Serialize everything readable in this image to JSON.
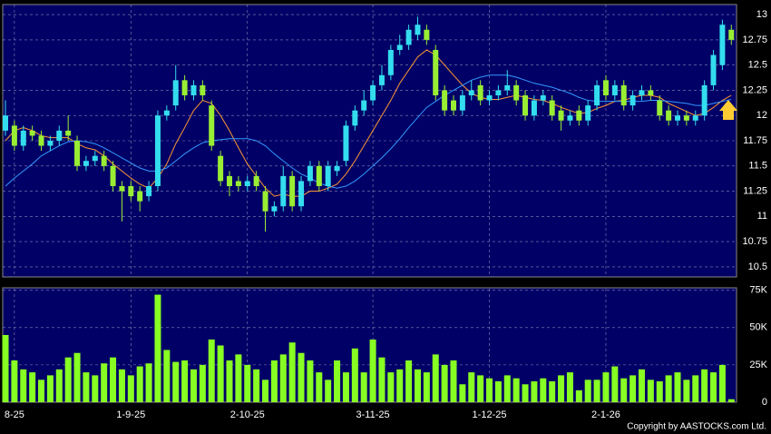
{
  "chart_data": [
    {
      "type": "candlestick",
      "categories": [
        null,
        "8-25",
        null,
        null,
        null,
        null,
        null,
        null,
        null,
        null,
        null,
        null,
        null,
        null,
        "1-9-25",
        null,
        null,
        null,
        null,
        null,
        null,
        null,
        null,
        null,
        null,
        null,
        null,
        "2-10-25",
        null,
        null,
        null,
        null,
        null,
        null,
        null,
        null,
        null,
        null,
        null,
        null,
        null,
        "3-11-25",
        null,
        null,
        null,
        null,
        null,
        null,
        null,
        null,
        null,
        null,
        null,
        null,
        "1-12-25",
        null,
        null,
        null,
        null,
        null,
        null,
        null,
        null,
        null,
        null,
        null,
        null,
        "2-1-26",
        null,
        null,
        null,
        null,
        null,
        null,
        null,
        null,
        null,
        null,
        null,
        null,
        null,
        null
      ],
      "open": [
        11.85,
        11.9,
        11.7,
        11.85,
        11.8,
        11.7,
        11.75,
        11.85,
        11.75,
        11.5,
        11.55,
        11.6,
        11.5,
        11.3,
        11.3,
        11.25,
        11.2,
        11.3,
        12.0,
        12.1,
        12.35,
        12.2,
        12.3,
        12.1,
        11.6,
        11.4,
        11.35,
        11.3,
        11.4,
        11.25,
        11.05,
        11.1,
        11.4,
        11.1,
        11.35,
        11.5,
        11.3,
        11.45,
        11.55,
        11.9,
        12.05,
        12.15,
        12.3,
        12.4,
        12.65,
        12.7,
        12.8,
        12.85,
        12.65,
        12.25,
        12.15,
        12.05,
        12.2,
        12.3,
        12.15,
        12.2,
        12.25,
        12.3,
        12.2,
        12.0,
        12.15,
        12.15,
        12.05,
        11.95,
        12.05,
        11.95,
        12.1,
        12.35,
        12.2,
        12.3,
        12.1,
        12.2,
        12.25,
        12.15,
        12.05,
        11.95,
        12.0,
        11.95,
        12.0,
        12.3,
        12.5,
        12.85
      ],
      "high": [
        12.15,
        11.95,
        11.9,
        11.9,
        11.85,
        11.8,
        11.9,
        12.0,
        11.8,
        11.6,
        11.65,
        11.65,
        11.55,
        11.35,
        11.35,
        11.3,
        11.35,
        12.05,
        12.1,
        12.5,
        12.4,
        12.35,
        12.35,
        12.15,
        11.65,
        11.45,
        11.4,
        11.4,
        11.45,
        11.3,
        11.15,
        11.5,
        11.45,
        11.4,
        11.55,
        11.55,
        11.55,
        11.55,
        11.95,
        12.1,
        12.25,
        12.35,
        12.5,
        12.7,
        12.8,
        12.9,
        12.98,
        12.9,
        12.7,
        12.3,
        12.2,
        12.25,
        12.35,
        12.35,
        12.25,
        12.3,
        12.45,
        12.35,
        12.25,
        12.2,
        12.25,
        12.2,
        12.1,
        12.05,
        12.1,
        12.15,
        12.35,
        12.4,
        12.35,
        12.35,
        12.25,
        12.3,
        12.3,
        12.2,
        12.1,
        12.05,
        12.05,
        12.05,
        12.35,
        12.65,
        12.95,
        12.9
      ],
      "low": [
        11.8,
        11.65,
        11.65,
        11.75,
        11.65,
        11.65,
        11.7,
        11.75,
        11.45,
        11.45,
        11.5,
        11.45,
        11.25,
        10.95,
        11.15,
        11.05,
        11.15,
        11.25,
        11.95,
        12.05,
        12.15,
        12.15,
        12.15,
        11.65,
        11.3,
        11.2,
        11.25,
        11.25,
        11.25,
        10.85,
        11.0,
        11.05,
        11.05,
        11.05,
        11.3,
        11.25,
        11.25,
        11.4,
        11.5,
        11.85,
        12.0,
        12.1,
        12.25,
        12.35,
        12.6,
        12.65,
        12.75,
        12.7,
        12.15,
        12.0,
        12.0,
        12.0,
        12.15,
        12.1,
        12.1,
        12.15,
        12.2,
        12.1,
        11.95,
        11.95,
        12.1,
        11.95,
        11.85,
        11.9,
        11.9,
        11.9,
        12.05,
        12.15,
        12.15,
        12.05,
        12.05,
        12.15,
        12.15,
        11.95,
        11.9,
        11.9,
        11.9,
        11.9,
        11.95,
        12.25,
        12.45,
        12.7
      ],
      "close": [
        12.0,
        11.7,
        11.85,
        11.8,
        11.7,
        11.75,
        11.85,
        11.8,
        11.5,
        11.55,
        11.6,
        11.5,
        11.3,
        11.25,
        11.2,
        11.15,
        11.3,
        12.0,
        12.05,
        12.35,
        12.2,
        12.3,
        12.2,
        11.7,
        11.35,
        11.3,
        11.3,
        11.35,
        11.3,
        11.05,
        11.1,
        11.4,
        11.1,
        11.35,
        11.5,
        11.3,
        11.5,
        11.5,
        11.9,
        12.05,
        12.15,
        12.3,
        12.4,
        12.65,
        12.7,
        12.85,
        12.9,
        12.75,
        12.2,
        12.05,
        12.05,
        12.2,
        12.25,
        12.15,
        12.2,
        12.25,
        12.3,
        12.15,
        12.0,
        12.15,
        12.2,
        12.0,
        11.95,
        12.0,
        11.95,
        12.1,
        12.3,
        12.2,
        12.3,
        12.1,
        12.2,
        12.25,
        12.2,
        12.0,
        11.95,
        12.0,
        11.95,
        12.0,
        12.3,
        12.6,
        12.9,
        12.75
      ],
      "up_color": "#33ddee",
      "down_color": "#99ee33",
      "overlays": [
        {
          "color": "#ff9933",
          "values": [
            11.75,
            11.85,
            11.88,
            11.85,
            11.8,
            11.78,
            11.78,
            11.78,
            11.72,
            11.68,
            11.66,
            11.6,
            11.52,
            11.45,
            11.38,
            11.32,
            11.28,
            11.38,
            11.52,
            11.72,
            11.88,
            12.05,
            12.15,
            12.12,
            12.0,
            11.85,
            11.68,
            11.52,
            11.4,
            11.28,
            11.2,
            11.22,
            11.2,
            11.2,
            11.25,
            11.25,
            11.28,
            11.32,
            11.42,
            11.55,
            11.7,
            11.85,
            12.0,
            12.15,
            12.32,
            12.45,
            12.58,
            12.65,
            12.6,
            12.5,
            12.4,
            12.3,
            12.22,
            12.18,
            12.16,
            12.16,
            12.18,
            12.2,
            12.18,
            12.16,
            12.15,
            12.12,
            12.08,
            12.05,
            12.02,
            12.03,
            12.07,
            12.1,
            12.14,
            12.15,
            12.18,
            12.2,
            12.2,
            12.18,
            12.12,
            12.08,
            12.04,
            12.0,
            12.02,
            12.08,
            12.15,
            12.2
          ]
        },
        {
          "color": "#3399ff",
          "values": [
            11.3,
            11.38,
            11.45,
            11.52,
            11.6,
            11.65,
            11.7,
            11.74,
            11.75,
            11.74,
            11.72,
            11.68,
            11.63,
            11.58,
            11.53,
            11.48,
            11.45,
            11.45,
            11.48,
            11.55,
            11.62,
            11.68,
            11.73,
            11.75,
            11.76,
            11.77,
            11.77,
            11.77,
            11.75,
            11.7,
            11.62,
            11.55,
            11.48,
            11.42,
            11.38,
            11.33,
            11.3,
            11.28,
            11.3,
            11.35,
            11.42,
            11.5,
            11.58,
            11.67,
            11.77,
            11.88,
            11.98,
            12.08,
            12.14,
            12.2,
            12.25,
            12.3,
            12.35,
            12.38,
            12.4,
            12.4,
            12.4,
            12.38,
            12.35,
            12.32,
            12.3,
            12.28,
            12.25,
            12.22,
            12.18,
            12.15,
            12.14,
            12.14,
            12.14,
            12.14,
            12.14,
            12.14,
            12.15,
            12.15,
            12.14,
            12.13,
            12.12,
            12.1,
            12.1,
            12.12,
            12.14,
            12.16
          ]
        }
      ],
      "ylim": [
        10.4,
        13.1
      ],
      "yticks": [
        10.5,
        10.75,
        11,
        11.25,
        11.5,
        11.75,
        12,
        12.25,
        12.5,
        12.75,
        13
      ],
      "grid": true
    },
    {
      "type": "bar",
      "values": [
        45000,
        28000,
        22000,
        20000,
        15000,
        18000,
        22000,
        30000,
        33000,
        20000,
        18000,
        26000,
        30000,
        22000,
        18000,
        24000,
        26000,
        72000,
        35000,
        27000,
        28000,
        22000,
        25000,
        42000,
        38000,
        28000,
        32000,
        25000,
        22000,
        15000,
        28000,
        32000,
        40000,
        33000,
        28000,
        20000,
        15000,
        28000,
        20000,
        36000,
        20000,
        42000,
        30000,
        20000,
        22000,
        28000,
        22000,
        20000,
        32000,
        25000,
        28000,
        12000,
        20000,
        18000,
        16000,
        14000,
        18000,
        16000,
        12000,
        14000,
        16000,
        14000,
        18000,
        20000,
        8000,
        15000,
        15000,
        20000,
        24000,
        16000,
        18000,
        22000,
        15000,
        14000,
        18000,
        20000,
        15000,
        18000,
        22000,
        20000,
        25000,
        2000
      ],
      "color": "#88ff22",
      "ylim": [
        0,
        76000
      ],
      "yticks": [
        0,
        {
          "value": 25000,
          "label": "25K"
        },
        {
          "value": 50000,
          "label": "50K"
        },
        {
          "value": 75000,
          "label": "75K"
        }
      ],
      "grid": true
    }
  ],
  "footer": "Copyright by AASTOCKS.com Ltd."
}
